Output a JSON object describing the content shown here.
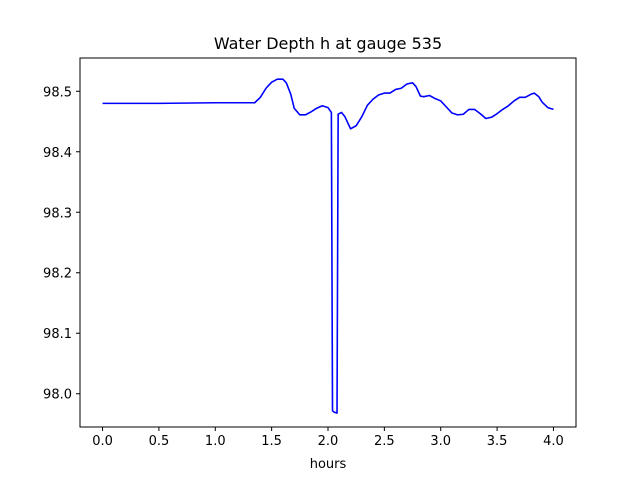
{
  "chart_data": {
    "type": "line",
    "title": "Water Depth h at gauge 535",
    "xlabel": "hours",
    "ylabel": "",
    "xlim": [
      -0.2,
      4.2
    ],
    "ylim": [
      97.945,
      98.555
    ],
    "xticks": [
      0.0,
      0.5,
      1.0,
      1.5,
      2.0,
      2.5,
      3.0,
      3.5,
      4.0
    ],
    "xtick_labels": [
      "0.0",
      "0.5",
      "1.0",
      "1.5",
      "2.0",
      "2.5",
      "3.0",
      "3.5",
      "4.0"
    ],
    "yticks": [
      98.0,
      98.1,
      98.2,
      98.3,
      98.4,
      98.5
    ],
    "ytick_labels": [
      "98.0",
      "98.1",
      "98.2",
      "98.3",
      "98.4",
      "98.5"
    ],
    "grid": false,
    "legend": false,
    "series": [
      {
        "color": "#0000ff",
        "x": [
          0.0,
          0.5,
          1.0,
          1.2,
          1.35,
          1.4,
          1.45,
          1.5,
          1.55,
          1.6,
          1.63,
          1.67,
          1.7,
          1.75,
          1.8,
          1.85,
          1.9,
          1.95,
          2.0,
          2.03,
          2.04,
          2.05,
          2.08,
          2.09,
          2.12,
          2.15,
          2.2,
          2.25,
          2.3,
          2.35,
          2.4,
          2.45,
          2.5,
          2.55,
          2.6,
          2.65,
          2.7,
          2.75,
          2.78,
          2.82,
          2.85,
          2.9,
          2.95,
          3.0,
          3.05,
          3.1,
          3.15,
          3.2,
          3.25,
          3.3,
          3.35,
          3.4,
          3.45,
          3.5,
          3.55,
          3.6,
          3.65,
          3.7,
          3.75,
          3.8,
          3.83,
          3.87,
          3.9,
          3.95,
          4.0
        ],
        "y": [
          98.48,
          98.48,
          98.481,
          98.481,
          98.481,
          98.49,
          98.505,
          98.515,
          98.52,
          98.52,
          98.514,
          98.495,
          98.472,
          98.461,
          98.461,
          98.466,
          98.472,
          98.476,
          98.473,
          98.465,
          97.972,
          97.97,
          97.968,
          98.462,
          98.465,
          98.458,
          98.438,
          98.443,
          98.458,
          98.477,
          98.487,
          98.494,
          98.497,
          98.497,
          98.503,
          98.505,
          98.512,
          98.514,
          98.508,
          98.492,
          98.491,
          98.493,
          98.488,
          98.484,
          98.474,
          98.464,
          98.461,
          98.462,
          98.47,
          98.47,
          98.463,
          98.455,
          98.457,
          98.463,
          98.47,
          98.476,
          98.484,
          98.49,
          98.49,
          98.495,
          98.497,
          98.491,
          98.482,
          98.473,
          98.47
        ]
      }
    ]
  }
}
